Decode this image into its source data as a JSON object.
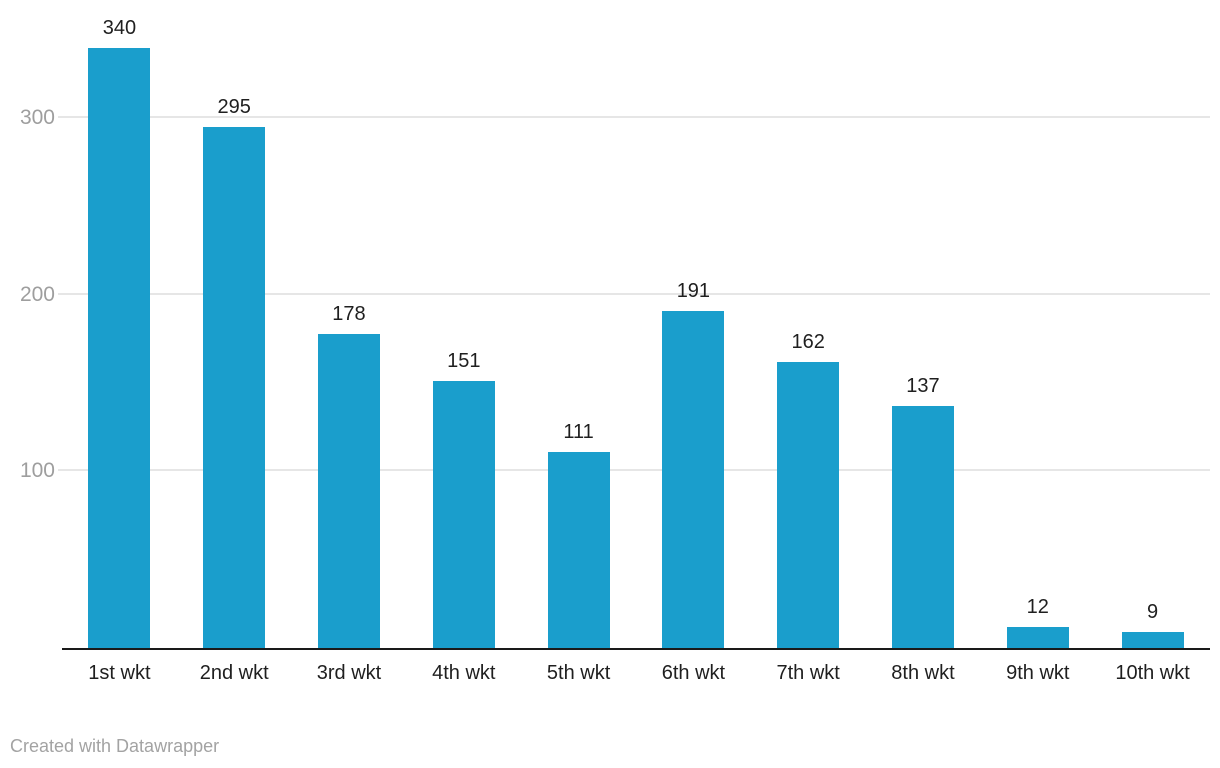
{
  "chart_data": {
    "type": "bar",
    "categories": [
      "1st wkt",
      "2nd wkt",
      "3rd wkt",
      "4th wkt",
      "5th wkt",
      "6th wkt",
      "7th wkt",
      "8th wkt",
      "9th wkt",
      "10th wkt"
    ],
    "values": [
      340,
      295,
      178,
      151,
      111,
      191,
      162,
      137,
      12,
      9
    ],
    "title": "",
    "xlabel": "",
    "ylabel": "",
    "yticks": [
      100,
      200,
      300
    ],
    "ylim": [
      0,
      367
    ],
    "grid": true,
    "value_labels_shown": true,
    "legend": "none"
  },
  "footer": {
    "credit": "Created with Datawrapper"
  },
  "colors": {
    "bar": "#1a9ecc",
    "gridline": "#e6e6e6",
    "axis_line": "#1a1a1a",
    "tick_label": "#9e9e9e",
    "value_label": "#1f1f1f",
    "category_label": "#1f1f1f",
    "credit": "#a3a3a3",
    "background": "#ffffff"
  }
}
